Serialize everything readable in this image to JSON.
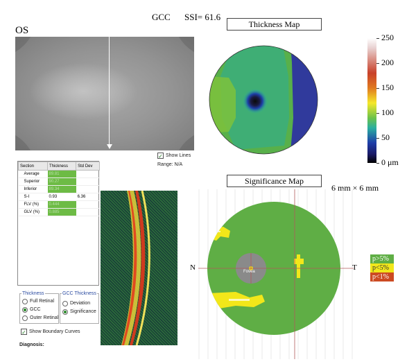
{
  "header": {
    "scan_type": "GCC",
    "ssi": "SSI= 61.6",
    "eye": "OS"
  },
  "fundus": {
    "show_lines_label": "Show Lines",
    "show_lines_checked": true,
    "range_label": "Range: N/A"
  },
  "thickness_map": {
    "title": "Thickness Map",
    "colorbar": {
      "labels": [
        "250",
        "200",
        "150",
        "100",
        "50",
        "0 μm"
      ],
      "ticks": [
        250,
        200,
        150,
        100,
        50,
        0
      ]
    }
  },
  "significance_map": {
    "title": "Significance Map",
    "size_label": "6 mm × 6 mm",
    "nasal": "N",
    "temporal": "T",
    "fovea_label": "Fovea",
    "legend": [
      {
        "label": "p>5%",
        "color": "#5fae45"
      },
      {
        "label": "p<5%",
        "color": "#f2e71a"
      },
      {
        "label": "p<1%",
        "color": "#cc4a22"
      }
    ]
  },
  "table": {
    "headers": [
      "Section",
      "Thickness",
      "Std Dev"
    ],
    "rows": [
      {
        "section": "Average",
        "thickness": "89.81",
        "std": "",
        "green": true
      },
      {
        "section": "Superior",
        "thickness": "90.27",
        "std": "",
        "green": true
      },
      {
        "section": "Inferior",
        "thickness": "89.34",
        "std": "",
        "green": true
      },
      {
        "section": "S-I",
        "thickness": "0.93",
        "std": "6.36",
        "green": false
      },
      {
        "section": "FLV (%)",
        "thickness": "0.444",
        "std": "",
        "green": true
      },
      {
        "section": "GLV (%)",
        "thickness": "0.885",
        "std": "",
        "green": true
      }
    ]
  },
  "thickness_options": {
    "title": "Thickness",
    "items": [
      {
        "label": "Full Retinal",
        "selected": false
      },
      {
        "label": "GCC",
        "selected": true
      },
      {
        "label": "Outer Retinal",
        "selected": false
      }
    ]
  },
  "gcc_thickness_options": {
    "title": "GCC Thickness",
    "items": [
      {
        "label": "Deviation",
        "selected": false
      },
      {
        "label": "Significance",
        "selected": true
      }
    ]
  },
  "show_boundary_label": "Show Boundary Curves",
  "show_boundary_checked": true,
  "diagnosis_label": "Diagnosis:"
}
